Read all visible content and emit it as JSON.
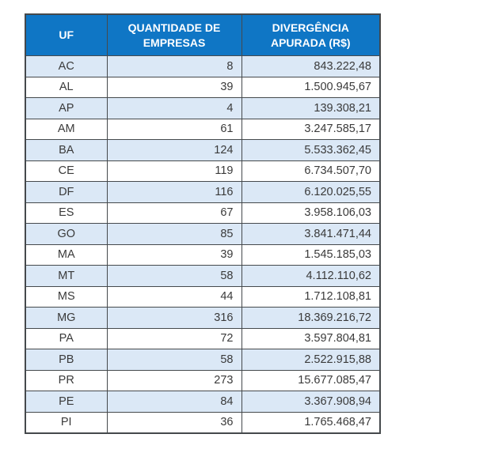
{
  "table": {
    "headers": [
      "UF",
      "QUANTIDADE DE EMPRESAS",
      "DIVERGÊNCIA APURADA (R$)"
    ],
    "rows": [
      {
        "uf": "AC",
        "empresas": "8",
        "divergencia": "843.222,48"
      },
      {
        "uf": "AL",
        "empresas": "39",
        "divergencia": "1.500.945,67"
      },
      {
        "uf": "AP",
        "empresas": "4",
        "divergencia": "139.308,21"
      },
      {
        "uf": "AM",
        "empresas": "61",
        "divergencia": "3.247.585,17"
      },
      {
        "uf": "BA",
        "empresas": "124",
        "divergencia": "5.533.362,45"
      },
      {
        "uf": "CE",
        "empresas": "119",
        "divergencia": "6.734.507,70"
      },
      {
        "uf": "DF",
        "empresas": "116",
        "divergencia": "6.120.025,55"
      },
      {
        "uf": "ES",
        "empresas": "67",
        "divergencia": "3.958.106,03"
      },
      {
        "uf": "GO",
        "empresas": "85",
        "divergencia": "3.841.471,44"
      },
      {
        "uf": "MA",
        "empresas": "39",
        "divergencia": "1.545.185,03"
      },
      {
        "uf": "MT",
        "empresas": "58",
        "divergencia": "4.112.110,62"
      },
      {
        "uf": "MS",
        "empresas": "44",
        "divergencia": "1.712.108,81"
      },
      {
        "uf": "MG",
        "empresas": "316",
        "divergencia": "18.369.216,72"
      },
      {
        "uf": "PA",
        "empresas": "72",
        "divergencia": "3.597.804,81"
      },
      {
        "uf": "PB",
        "empresas": "58",
        "divergencia": "2.522.915,88"
      },
      {
        "uf": "PR",
        "empresas": "273",
        "divergencia": "15.677.085,47"
      },
      {
        "uf": "PE",
        "empresas": "84",
        "divergencia": "3.367.908,94"
      },
      {
        "uf": "PI",
        "empresas": "36",
        "divergencia": "1.765.468,47"
      }
    ],
    "colors": {
      "header_bg": "#0F76C5",
      "header_text": "#FFFFFF",
      "band_bg": "#DBE8F6",
      "row_bg": "#FFFFFF",
      "border": "#45494C",
      "text": "#3A3A3A",
      "page_bg": "#FFFFFF"
    }
  }
}
